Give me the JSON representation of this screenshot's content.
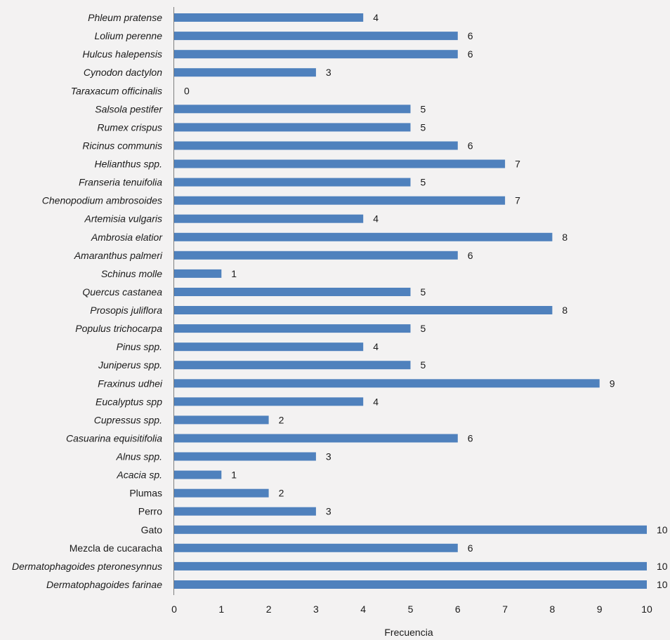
{
  "chart_data": {
    "type": "bar",
    "orientation": "horizontal",
    "title": "",
    "xlabel": "Frecuencia",
    "ylabel": "",
    "xlim": [
      0,
      10
    ],
    "xticks": [
      0,
      1,
      2,
      3,
      4,
      5,
      6,
      7,
      8,
      9,
      10
    ],
    "bar_color": "#4f81bd",
    "categories": [
      {
        "label": "Phleum pratense",
        "value": 4,
        "italic": true
      },
      {
        "label": "Lolium perenne",
        "value": 6,
        "italic": true
      },
      {
        "label": "Hulcus halepensis",
        "value": 6,
        "italic": true
      },
      {
        "label": "Cynodon dactylon",
        "value": 3,
        "italic": true
      },
      {
        "label": "Taraxacum officinalis",
        "value": 0,
        "italic": true
      },
      {
        "label": "Salsola pestifer",
        "value": 5,
        "italic": true
      },
      {
        "label": "Rumex crispus",
        "value": 5,
        "italic": true
      },
      {
        "label": "Ricinus communis",
        "value": 6,
        "italic": true
      },
      {
        "label": "Helianthus spp.",
        "value": 7,
        "italic": true
      },
      {
        "label": "Franseria tenuifolia",
        "value": 5,
        "italic": true
      },
      {
        "label": "Chenopodium ambrosoides",
        "value": 7,
        "italic": true
      },
      {
        "label": "Artemisia vulgaris",
        "value": 4,
        "italic": true
      },
      {
        "label": "Ambrosia elatior",
        "value": 8,
        "italic": true
      },
      {
        "label": "Amaranthus palmeri",
        "value": 6,
        "italic": true
      },
      {
        "label": "Schinus molle",
        "value": 1,
        "italic": true
      },
      {
        "label": "Quercus castanea",
        "value": 5,
        "italic": true
      },
      {
        "label": "Prosopis juliflora",
        "value": 8,
        "italic": true
      },
      {
        "label": "Populus trichocarpa",
        "value": 5,
        "italic": true
      },
      {
        "label": "Pinus spp.",
        "value": 4,
        "italic": true
      },
      {
        "label": "Juniperus spp.",
        "value": 5,
        "italic": true
      },
      {
        "label": "Fraxinus udhei",
        "value": 9,
        "italic": true
      },
      {
        "label": "Eucalyptus spp",
        "value": 4,
        "italic": true
      },
      {
        "label": "Cupressus spp.",
        "value": 2,
        "italic": true
      },
      {
        "label": "Casuarina equisitifolia",
        "value": 6,
        "italic": true
      },
      {
        "label": "Alnus spp.",
        "value": 3,
        "italic": true
      },
      {
        "label": "Acacia sp.",
        "value": 1,
        "italic": true
      },
      {
        "label": "Plumas",
        "value": 2,
        "italic": false
      },
      {
        "label": "Perro",
        "value": 3,
        "italic": false
      },
      {
        "label": "Gato",
        "value": 10,
        "italic": false
      },
      {
        "label": "Mezcla de cucaracha",
        "value": 6,
        "italic": false
      },
      {
        "label": "Dermatophagoides pteronesynnus",
        "value": 10,
        "italic": true
      },
      {
        "label": "Dermatophagoides farinae",
        "value": 10,
        "italic": true
      }
    ]
  }
}
